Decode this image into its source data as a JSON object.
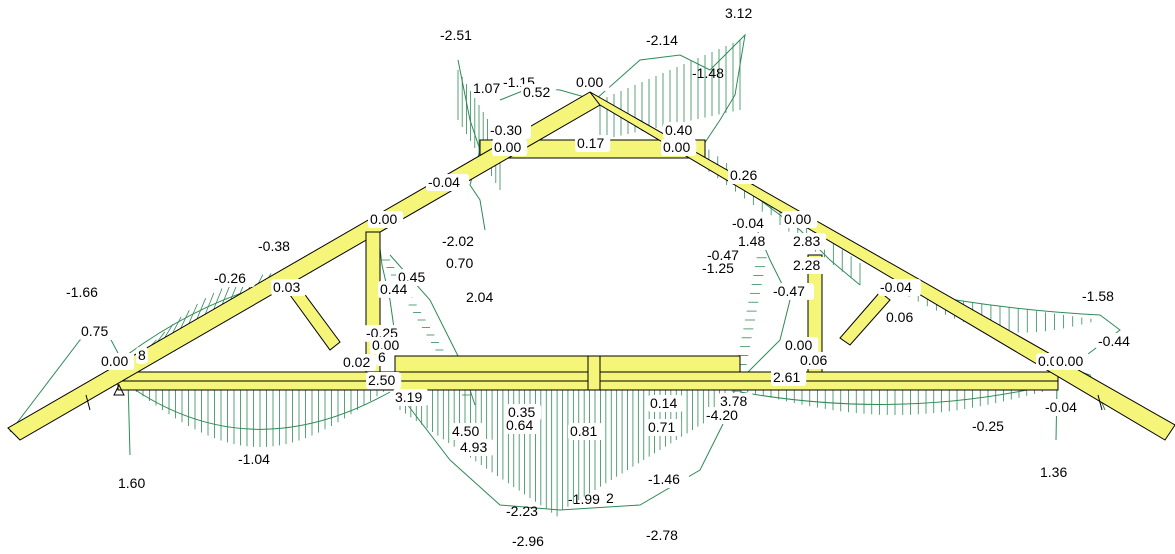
{
  "colors": {
    "member_fill": "#f5f57a",
    "member_stroke": "#000000",
    "diagram": "#2e8b57",
    "text": "#000000",
    "background": "#ffffff"
  },
  "support_icon": "pin-support-icon",
  "labels": {
    "l_m251": "-2.51",
    "l_m214": "-2.14",
    "l_312": "3.12",
    "l_107": "1.07",
    "l_m115": "-1.15",
    "l_052": "0.52",
    "l_top000": "0.00",
    "l_m148": "-1.48",
    "l_m030": "-0.30",
    "l_040": "0.40",
    "l_ridgeL000": "0.00",
    "l_017": "0.17",
    "l_ridgeR000": "0.00",
    "l_m004a": "-0.04",
    "l_026": "0.26",
    "l_leftjoint000": "0.00",
    "l_m004b": "-0.04",
    "l_rightjoint000": "0.00",
    "l_m038": "-0.38",
    "l_m202": "-2.02",
    "l_148": "1.48",
    "l_283": "2.83",
    "l_m047a": "-0.47",
    "l_m125": "-1.25",
    "l_070": "0.70",
    "l_228": "2.28",
    "l_m026": "-0.26",
    "l_045": "0.45",
    "l_003": "0.03",
    "l_044": "0.44",
    "l_204": "2.04",
    "l_m047b": "-0.47",
    "l_m004c": "-0.04",
    "l_m166": "-1.66",
    "l_m158": "-1.58",
    "l_006a": "0.06",
    "l_075": "0.75",
    "l_m025a": "-0.25",
    "l_000mid": "0.00",
    "l_m044": "-0.44",
    "l_x6": "6",
    "l_0dot00left": "0.00",
    "l_8": "8",
    "l_002": "0.02",
    "l_000r2": "0.00",
    "l_006b": "0.06",
    "l_0dot00r": "0.0",
    "l_000r3": "0.00",
    "l_250": "2.50",
    "l_261": "2.61",
    "l_319": "3.19",
    "l_378": "3.78",
    "l_035": "0.35",
    "l_014": "0.14",
    "l_m420": "-4.20",
    "l_m004d": "-0.04",
    "l_m025b": "-0.25",
    "l_450": "4.50",
    "l_064": "0.64",
    "l_081": "0.81",
    "l_071": "0.71",
    "l_493": "4.93",
    "l_m104": "-1.04",
    "l_160": "1.60",
    "l_m146": "-1.46",
    "l_136": "1.36",
    "l_m223": "-2.23",
    "l_m199": "-1.99",
    "l_2": "2",
    "l_m296": "-2.96",
    "l_m278": "-2.78"
  }
}
